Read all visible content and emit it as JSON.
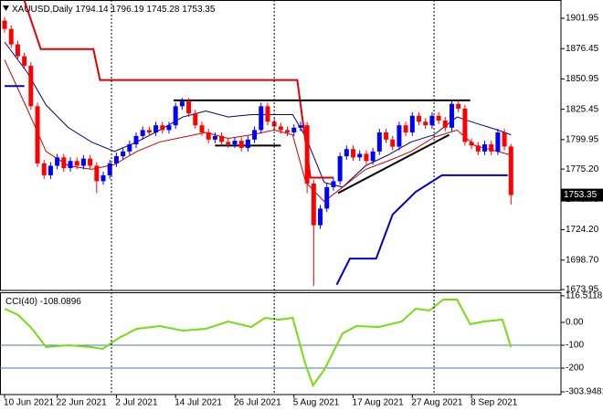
{
  "chart_data": {
    "type": "candlestick",
    "symbol": "XAUUSD,Daily",
    "xlim": [
      -0.7,
      84.6
    ],
    "xticks": [
      {
        "value": 0,
        "label": "10 Jun 2021"
      },
      {
        "value": 8,
        "label": "22 Jun 2021"
      },
      {
        "value": 17,
        "label": "2 Jul 2021"
      },
      {
        "value": 26,
        "label": "14 Jul 2021"
      },
      {
        "value": 35,
        "label": "26 Jul 2021"
      },
      {
        "value": 44,
        "label": "5 Aug 2021"
      },
      {
        "value": 53,
        "label": "17 Aug 2021"
      },
      {
        "value": 62,
        "label": "27 Aug 2021"
      },
      {
        "value": 71,
        "label": "8 Sep 2021"
      }
    ],
    "separators": [
      16.25,
      41,
      65.3
    ],
    "ylim": [
      1673.2,
      1917.3
    ],
    "yticks": [
      1901.95,
      1876.45,
      1850.95,
      1825.45,
      1799.95,
      {
        "value": 1775.2,
        "label": "1775.20"
      },
      {
        "value": 1749.7,
        "label": "1749.70"
      },
      {
        "value": 1724.2,
        "label": "1724.20"
      },
      {
        "value": 1698.7,
        "label": "1698.70"
      },
      1673.95
    ],
    "up_color": "#0000ff",
    "down_color": "#ff0000",
    "open": [
      1900,
      1893,
      1880,
      1870,
      1862,
      1828,
      1780,
      1770,
      1778,
      1785,
      1776,
      1782,
      1778,
      1784,
      1778,
      1765,
      1770,
      1780,
      1786,
      1790,
      1796,
      1803,
      1808,
      1806,
      1812,
      1808,
      1812,
      1828,
      1832,
      1822,
      1812,
      1806,
      1800,
      1803,
      1798,
      1796,
      1799,
      1793,
      1800,
      1808,
      1828,
      1815,
      1811,
      1808,
      1806,
      1810,
      1812,
      1763,
      1728,
      1742,
      1760,
      1765,
      1786,
      1792,
      1785,
      1788,
      1782,
      1790,
      1806,
      1800,
      1794,
      1812,
      1806,
      1820,
      1815,
      1812,
      1820,
      1816,
      1810,
      1830,
      1826,
      1798,
      1795,
      1790,
      1796,
      1790,
      1806,
      1794.14
    ],
    "high": [
      1903,
      1896,
      1883,
      1873,
      1865,
      1831,
      1783,
      1781,
      1788,
      1788,
      1785,
      1785,
      1787,
      1787,
      1781,
      1773,
      1783,
      1789,
      1793,
      1799,
      1806,
      1811,
      1811,
      1815,
      1815,
      1815,
      1831,
      1835,
      1835,
      1825,
      1815,
      1809,
      1806,
      1806,
      1801,
      1802,
      1802,
      1803,
      1811,
      1831,
      1831,
      1818,
      1814,
      1811,
      1813,
      1815,
      1815,
      1766,
      1745,
      1763,
      1768,
      1789,
      1795,
      1795,
      1791,
      1791,
      1793,
      1809,
      1809,
      1803,
      1815,
      1815,
      1823,
      1823,
      1818,
      1823,
      1823,
      1819,
      1833,
      1833,
      1829,
      1801,
      1798,
      1799,
      1799,
      1809,
      1809,
      1796.19
    ],
    "low": [
      1890,
      1877,
      1867,
      1859,
      1825,
      1777,
      1767,
      1767,
      1775,
      1773,
      1773,
      1775,
      1775,
      1775,
      1755,
      1762,
      1767,
      1777,
      1783,
      1787,
      1793,
      1800,
      1803,
      1803,
      1805,
      1805,
      1809,
      1825,
      1819,
      1809,
      1803,
      1797,
      1797,
      1795,
      1793,
      1793,
      1790,
      1790,
      1797,
      1805,
      1812,
      1808,
      1805,
      1803,
      1803,
      1807,
      1755,
      1677,
      1725,
      1739,
      1757,
      1762,
      1783,
      1782,
      1782,
      1779,
      1779,
      1787,
      1797,
      1791,
      1791,
      1803,
      1803,
      1812,
      1809,
      1809,
      1813,
      1807,
      1807,
      1823,
      1795,
      1792,
      1787,
      1787,
      1787,
      1787,
      1791,
      1745.28
    ],
    "close": [
      1893,
      1880,
      1870,
      1862,
      1828,
      1780,
      1770,
      1778,
      1785,
      1776,
      1782,
      1778,
      1784,
      1778,
      1765,
      1770,
      1780,
      1786,
      1790,
      1796,
      1803,
      1808,
      1806,
      1812,
      1808,
      1812,
      1828,
      1832,
      1822,
      1812,
      1806,
      1800,
      1803,
      1798,
      1796,
      1799,
      1793,
      1800,
      1808,
      1828,
      1815,
      1811,
      1808,
      1806,
      1810,
      1812,
      1763,
      1728,
      1742,
      1760,
      1765,
      1786,
      1792,
      1785,
      1788,
      1782,
      1790,
      1806,
      1800,
      1794,
      1812,
      1806,
      1820,
      1815,
      1812,
      1820,
      1816,
      1810,
      1830,
      1826,
      1798,
      1795,
      1790,
      1796,
      1790,
      1806,
      1794.14,
      1753.35
    ],
    "lines": [
      {
        "color": "#000080",
        "width": 1,
        "x": [
          0,
          3.5,
          6.3,
          9.7,
          13.2,
          16.7,
          20.1,
          23.6,
          27.1,
          30.6,
          34,
          37.5,
          41,
          43.8,
          45.8,
          48.6,
          51.4,
          54.9,
          58.3,
          61.8,
          65.3,
          68.8,
          71.5,
          75,
          77
        ],
        "values": [
          1882,
          1856,
          1829,
          1810,
          1798,
          1790,
          1798,
          1808,
          1819,
          1824,
          1819,
          1821,
          1821,
          1821,
          1802,
          1764,
          1760,
          1778,
          1787,
          1798,
          1804,
          1819,
          1814,
          1808,
          1804
        ]
      },
      {
        "color": "#cc0000",
        "width": 1,
        "x": [
          0,
          3.5,
          6.3,
          9.7,
          13.2,
          16.7,
          20.1,
          23.6,
          27.1,
          30.6,
          34,
          37.5,
          41,
          43.8,
          45.8,
          48.6,
          51.4,
          54.9,
          58.3,
          61.8,
          65.3,
          68.8,
          71.5,
          75,
          77
        ],
        "values": [
          1867,
          1825,
          1790,
          1778,
          1775,
          1779,
          1790,
          1798,
          1802,
          1806,
          1801,
          1804,
          1808,
          1804,
          1764,
          1748,
          1760,
          1775,
          1782,
          1790,
          1802,
          1808,
          1795,
          1790,
          1787
        ]
      },
      {
        "color": "#e00000",
        "width": 2,
        "x": [
          3,
          5.5,
          13.5,
          14.5,
          44.5,
          46.5,
          50
        ],
        "values": [
          1917,
          1876,
          1876,
          1850,
          1850,
          1768,
          1768
        ]
      },
      {
        "color": "#0000cc",
        "width": 2,
        "x": [
          0,
          3,
          26,
          50.5,
          52.5,
          56.5,
          59,
          62.5,
          66.5,
          76.5
        ],
        "values": [
          1845,
          1845,
          null,
          1678,
          1700,
          1700,
          1737,
          1756,
          1770,
          1770
        ]
      },
      {
        "color": "#000000",
        "width": 2,
        "x": [
          25.7,
          70.8
        ],
        "values": [
          1833,
          1833
        ]
      },
      {
        "color": "#000000",
        "width": 2,
        "x": [
          32,
          42
        ],
        "values": [
          1795,
          1795
        ]
      },
      {
        "color": "#000000",
        "width": 2,
        "x": [
          50.7,
          67.6
        ],
        "values": [
          1755,
          1804
        ]
      }
    ],
    "indicator": {
      "title": "CCI(40)",
      "color": "#77dd11",
      "ylim": [
        -316,
        132
      ],
      "yticks": [
        116.5118,
        {
          "value": 0,
          "label": "0.00"
        },
        -100,
        -200,
        -303.9481
      ],
      "levels": [
        -100,
        -200
      ],
      "x": [
        0,
        2.1,
        4.2,
        6.3,
        9.7,
        13.2,
        14.9,
        17.4,
        20.1,
        23.6,
        27.1,
        30.6,
        34,
        37.5,
        39.6,
        41.7,
        43.8,
        45.8,
        46.9,
        48.6,
        51.4,
        53.5,
        56.9,
        60.4,
        62.5,
        64.6,
        66.7,
        68.8,
        70.8,
        72.9,
        75.7,
        77
      ],
      "values": [
        60,
        32,
        -28,
        -108,
        -100,
        -108,
        -116,
        -68,
        -28,
        -16,
        -36,
        -28,
        4,
        -20,
        20,
        12,
        20,
        -188,
        -276,
        -208,
        -48,
        -16,
        -20,
        4,
        60,
        52,
        100,
        100,
        -8,
        4,
        12,
        -108.0896
      ]
    }
  }
}
